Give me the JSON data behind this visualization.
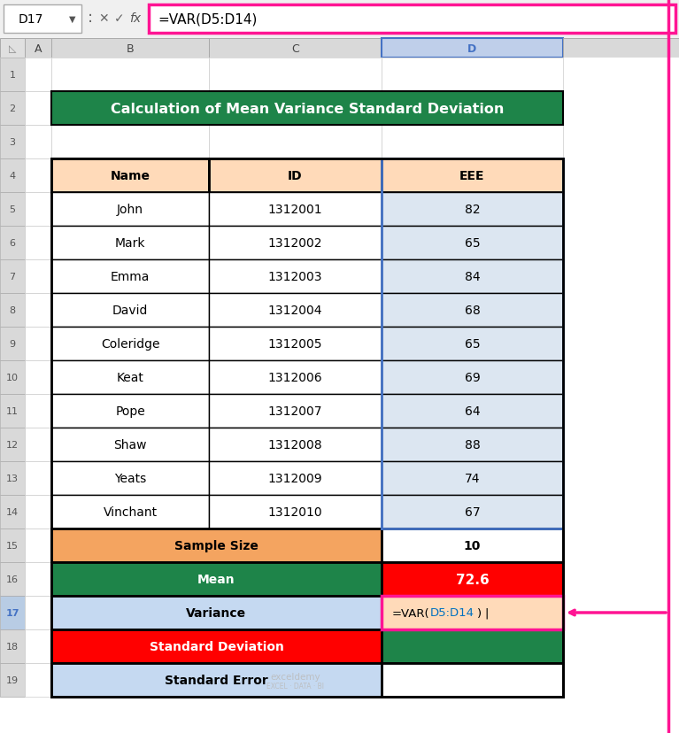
{
  "title": "Calculation of Mean Variance Standard Deviation",
  "formula_bar_text": "=VAR(D5:D14)",
  "cell_ref": "D17",
  "names": [
    "John",
    "Mark",
    "Emma",
    "David",
    "Coleridge",
    "Keat",
    "Pope",
    "Shaw",
    "Yeats",
    "Vinchant"
  ],
  "ids": [
    "1312001",
    "1312002",
    "1312003",
    "1312004",
    "1312005",
    "1312006",
    "1312007",
    "1312008",
    "1312009",
    "1312010"
  ],
  "eee": [
    82,
    65,
    84,
    68,
    65,
    69,
    64,
    88,
    74,
    67
  ],
  "header_bg": "#FFDAB9",
  "data_bg_blue": "#DCE6F1",
  "title_bg": "#1E8449",
  "title_color": "#FFFFFF",
  "sample_size_bg": "#F4A460",
  "mean_label_bg": "#1E8449",
  "mean_label_color": "#FFFFFF",
  "mean_value_bg": "#FF0000",
  "mean_value_color": "#FFFFFF",
  "variance_label_bg": "#C5D9F1",
  "variance_value_bg": "#FFDAB9",
  "variance_formula_color_blue": "#0070C0",
  "std_label_bg": "#FF0000",
  "std_label_color": "#FFFFFF",
  "std_value_bg": "#1E8449",
  "std_error_label_bg": "#C5D9F1",
  "arrow_color": "#FF1493",
  "col_D_selection_border": "#4472C4",
  "bg_color": "#FFFFFF",
  "toolbar_bg": "#F0F0F0",
  "col_header_bg": "#D9D9D9",
  "col_D_header_bg": "#BFCFEA",
  "row17_num_bg": "#B8CCE4",
  "row17_num_color": "#4472C4"
}
